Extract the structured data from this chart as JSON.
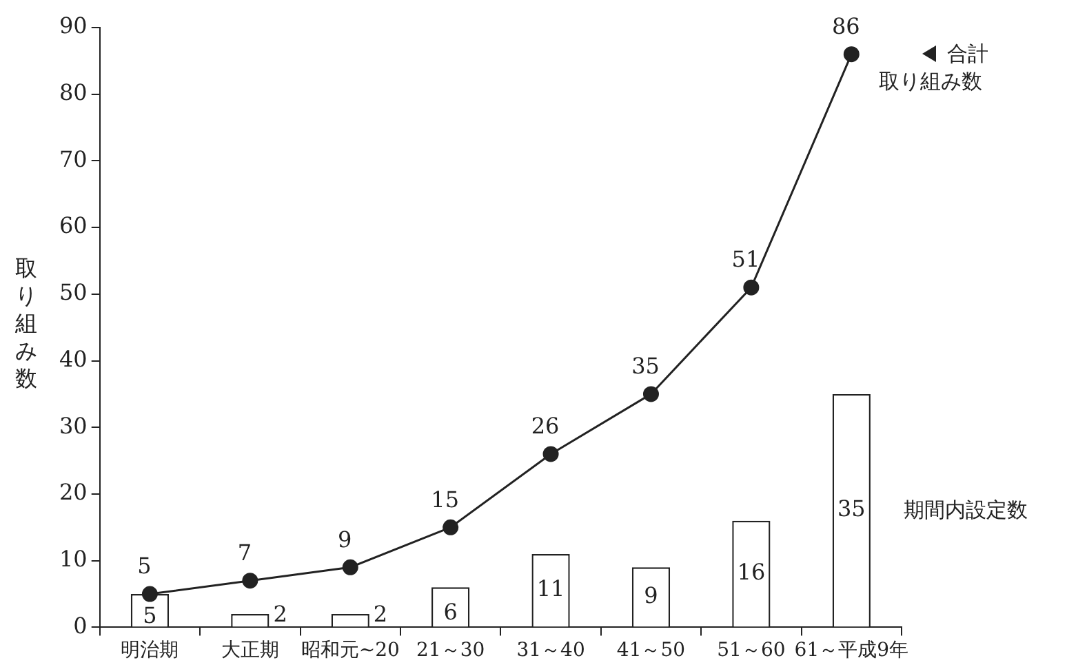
{
  "chart_data": {
    "type": "bar",
    "ylabel": "取り組み数",
    "categories": [
      "明治期",
      "大正期",
      "昭和元~20",
      "21～30",
      "31～40",
      "41～50",
      "51～60",
      "61～平成9年"
    ],
    "series": [
      {
        "name": "期間内設定数",
        "color": "#ffffff",
        "values": [
          5,
          2,
          2,
          6,
          11,
          9,
          16,
          35
        ]
      },
      {
        "name": "合計取り組み数",
        "type": "line",
        "color": "#222222",
        "values": [
          5,
          7,
          9,
          15,
          26,
          35,
          51,
          86
        ]
      }
    ],
    "ylim": [
      0,
      90
    ],
    "yticks": [
      0,
      10,
      20,
      30,
      40,
      50,
      60,
      70,
      80,
      90
    ],
    "grid": false,
    "legend": "right",
    "marker": "circle",
    "line_style": "solid",
    "data_labels": true
  }
}
